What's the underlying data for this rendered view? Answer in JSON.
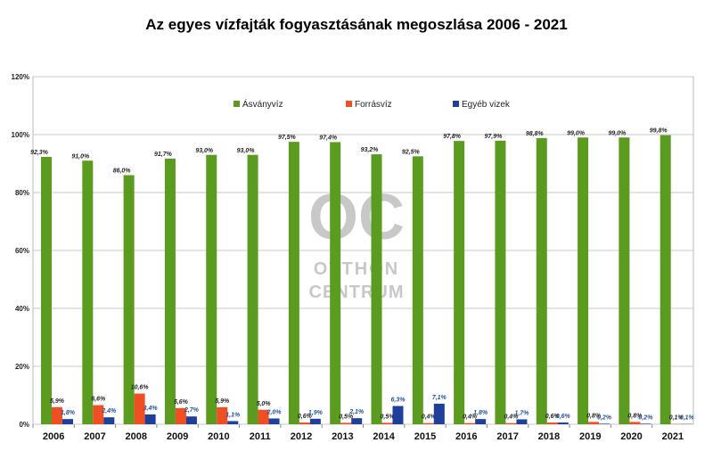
{
  "chart_data": {
    "type": "bar",
    "title": "Az egyes vízfajták fogyasztásának megoszlása 2006 - 2021",
    "categories": [
      "2006",
      "2007",
      "2008",
      "2009",
      "2010",
      "2011",
      "2012",
      "2013",
      "2014",
      "2015",
      "2016",
      "2017",
      "2018",
      "2019",
      "2020",
      "2021"
    ],
    "series": [
      {
        "name": "Ásványvíz",
        "color": "#5b9b1f",
        "values": [
          92.3,
          91.0,
          86.0,
          91.7,
          93.0,
          93.0,
          97.5,
          97.4,
          93.2,
          92.5,
          97.8,
          97.9,
          98.8,
          99.0,
          99.0,
          99.8
        ],
        "labels": [
          "92,3%",
          "91,0%",
          "86,0%",
          "91,7%",
          "93,0%",
          "93,0%",
          "97,5%",
          "97,4%",
          "93,2%",
          "92,5%",
          "97,8%",
          "97,9%",
          "98,8%",
          "99,0%",
          "99,0%",
          "99,8%"
        ]
      },
      {
        "name": "Forrásvíz",
        "color": "#f04e23",
        "values": [
          5.9,
          6.6,
          10.6,
          5.6,
          5.9,
          5.0,
          0.6,
          0.5,
          0.5,
          0.4,
          0.4,
          0.4,
          0.6,
          0.8,
          0.8,
          0.1
        ],
        "labels": [
          "5,9%",
          "6,6%",
          "10,6%",
          "5,6%",
          "5,9%",
          "5,0%",
          "0,6%",
          "0,5%",
          "0,5%",
          "0,4%",
          "0,4%",
          "0,4%",
          "0,6%",
          "0,8%",
          "0,8%",
          "0,1%"
        ]
      },
      {
        "name": "Egyéb vizek",
        "color": "#1f3f9b",
        "values": [
          1.8,
          2.4,
          3.4,
          2.7,
          1.1,
          2.0,
          1.9,
          2.1,
          6.3,
          7.1,
          1.8,
          1.7,
          0.6,
          0.2,
          0.2,
          0.1
        ],
        "labels": [
          "1,8%",
          "2,4%",
          "3,4%",
          "2,7%",
          "1,1%",
          "2,0%",
          "1,9%",
          "2,1%",
          "6,3%",
          "7,1%",
          "1,8%",
          "1,7%",
          "0,6%",
          "0,2%",
          "0,2%",
          "0,1%"
        ]
      }
    ],
    "ylim": [
      0,
      120
    ],
    "yticks": [
      "0%",
      "20%",
      "40%",
      "60%",
      "80%",
      "100%",
      "120%"
    ],
    "grid": true,
    "legend": "top"
  },
  "watermark": {
    "text1": "OC",
    "text2": "OTTHON",
    "text3": "CENTRUM"
  }
}
